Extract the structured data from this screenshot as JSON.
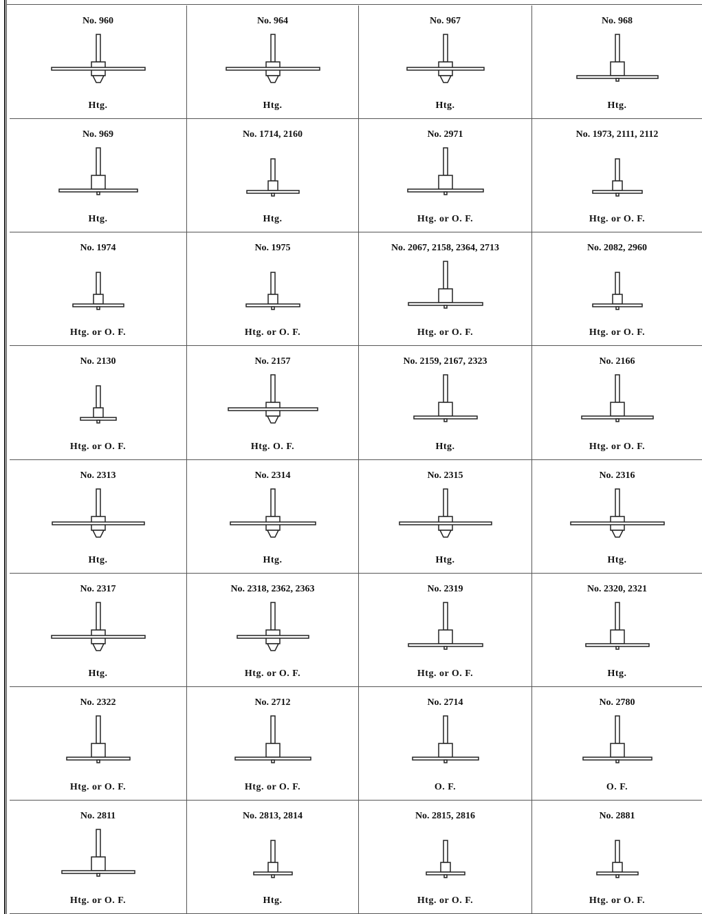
{
  "cells": [
    [
      {
        "title": "No. 960",
        "caption": "Htg."
      },
      {
        "title": "No. 964",
        "caption": "Htg."
      },
      {
        "title": "No. 967",
        "caption": "Htg."
      },
      {
        "title": "No. 968",
        "caption": "Htg."
      }
    ],
    [
      {
        "title": "No. 969",
        "caption": "Htg."
      },
      {
        "title": "No. 1714, 2160",
        "caption": "Htg."
      },
      {
        "title": "No. 2971",
        "caption": "Htg. or O. F."
      },
      {
        "title": "No. 1973, 2111, 2112",
        "caption": "Htg. or O. F."
      }
    ],
    [
      {
        "title": "No. 1974",
        "caption": "Htg. or O. F."
      },
      {
        "title": "No. 1975",
        "caption": "Htg. or O. F."
      },
      {
        "title": "No. 2067, 2158, 2364, 2713",
        "caption": "Htg. or O. F."
      },
      {
        "title": "No. 2082, 2960",
        "caption": "Htg. or O. F."
      }
    ],
    [
      {
        "title": "No. 2130",
        "caption": "Htg. or O. F."
      },
      {
        "title": "No. 2157",
        "caption": "Htg. O. F."
      },
      {
        "title": "No. 2159, 2167, 2323",
        "caption": "Htg."
      },
      {
        "title": "No. 2166",
        "caption": "Htg. or O. F."
      }
    ],
    [
      {
        "title": "No. 2313",
        "caption": "Htg."
      },
      {
        "title": "No. 2314",
        "caption": "Htg."
      },
      {
        "title": "No. 2315",
        "caption": "Htg."
      },
      {
        "title": "No. 2316",
        "caption": "Htg."
      }
    ],
    [
      {
        "title": "No. 2317",
        "caption": "Htg."
      },
      {
        "title": "No. 2318, 2362, 2363",
        "caption": "Htg. or O. F."
      },
      {
        "title": "No. 2319",
        "caption": "Htg. or O. F."
      },
      {
        "title": "No. 2320, 2321",
        "caption": "Htg."
      }
    ],
    [
      {
        "title": "No. 2322",
        "caption": "Htg. or O. F."
      },
      {
        "title": "No. 2712",
        "caption": "Htg. or O. F."
      },
      {
        "title": "No. 2714",
        "caption": "O. F."
      },
      {
        "title": "No. 2780",
        "caption": "O. F."
      }
    ],
    [
      {
        "title": "No. 2811",
        "caption": "Htg. or O. F."
      },
      {
        "title": "No. 2813, 2814",
        "caption": "Htg."
      },
      {
        "title": "No. 2815, 2816",
        "caption": "Htg. or O. F."
      },
      {
        "title": "No. 2881",
        "caption": "Htg. or O. F."
      }
    ]
  ]
}
